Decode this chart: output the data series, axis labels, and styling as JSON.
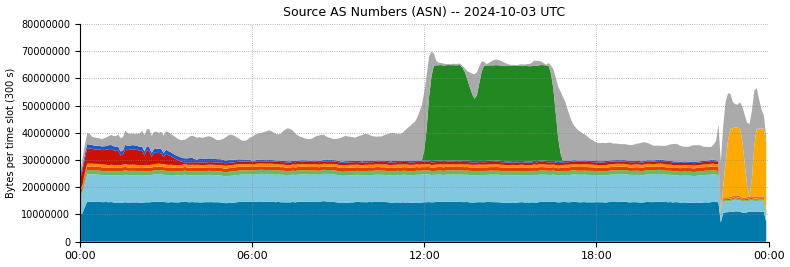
{
  "title": "Source AS Numbers (ASN) -- 2024-10-03 UTC",
  "ylabel": "Bytes per time slot (300 s)",
  "xlim": [
    0,
    288
  ],
  "ylim": [
    0,
    80000000
  ],
  "yticks": [
    0,
    10000000,
    20000000,
    30000000,
    40000000,
    50000000,
    60000000,
    70000000,
    80000000
  ],
  "xtick_positions": [
    0,
    72,
    144,
    216,
    288
  ],
  "xtick_labels": [
    "00:00",
    "06:00",
    "12:00",
    "18:00",
    "00:00"
  ],
  "colors": {
    "teal": "#007aaa",
    "lightblue": "#80c8e0",
    "light_green": "#66bb66",
    "orange_red": "#dd4400",
    "orange": "#ff8800",
    "red": "#cc1100",
    "blue": "#2255cc",
    "green": "#228822",
    "yellow_orange": "#ffaa00",
    "gray": "#aaaaaa"
  },
  "n_points": 288
}
